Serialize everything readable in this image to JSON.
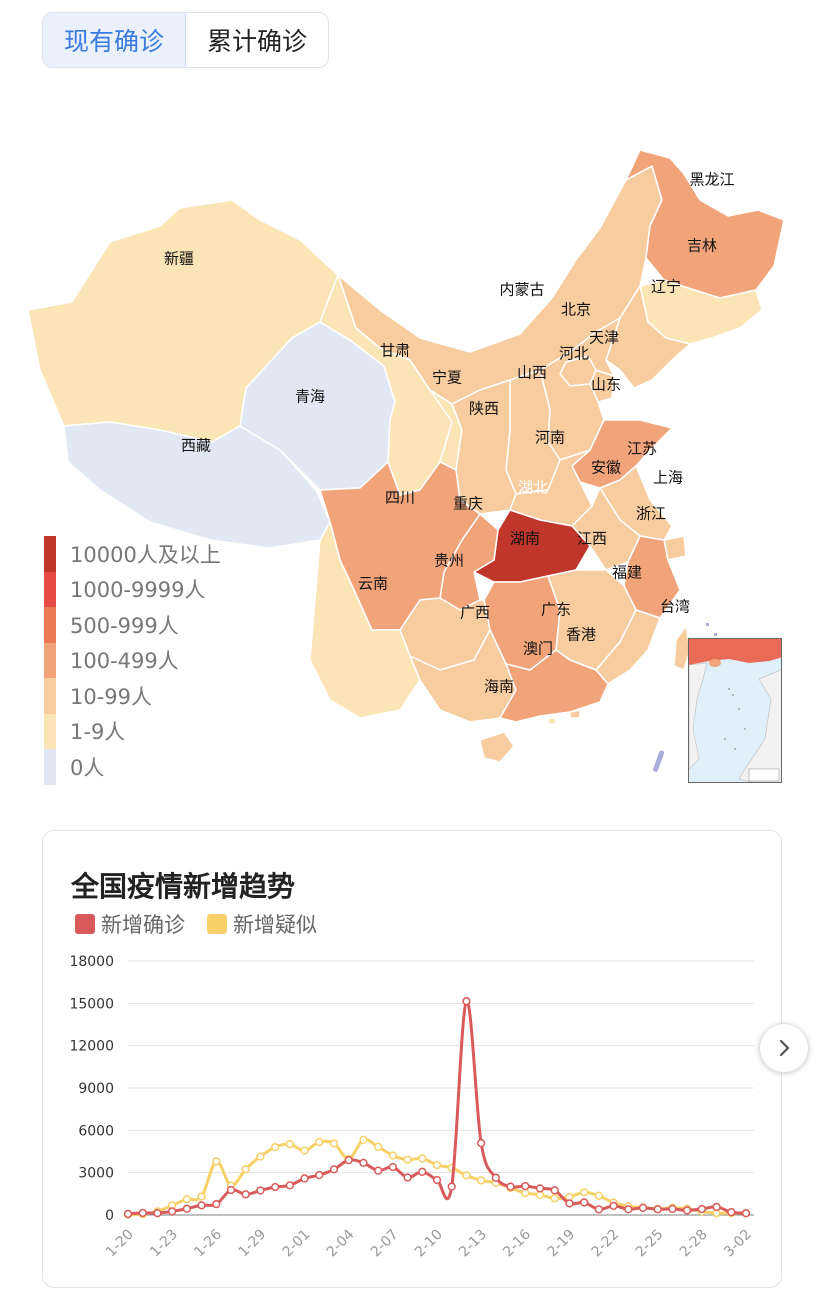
{
  "tabs": [
    {
      "label": "现有确诊",
      "active": true
    },
    {
      "label": "累计确诊",
      "active": false
    }
  ],
  "colors": {
    "c10000": "#c0362a",
    "c1000": "#e64a45",
    "c500": "#ec7a55",
    "c100": "#f1a37a",
    "c10": "#f7cc9e",
    "c1": "#fbe4b5",
    "c0": "#e2e8f3",
    "confirmed": "#d85a5a",
    "suspected": "#f7d068",
    "accent": "#3a7be0"
  },
  "map": {
    "provinces": [
      {
        "name": "黑龙江",
        "level": "c100"
      },
      {
        "name": "吉林",
        "level": "c1"
      },
      {
        "name": "辽宁",
        "level": "c10"
      },
      {
        "name": "内蒙古",
        "level": "c10"
      },
      {
        "name": "北京",
        "level": "c10"
      },
      {
        "name": "天津",
        "level": "c10"
      },
      {
        "name": "河北",
        "level": "c10"
      },
      {
        "name": "山西",
        "level": "c10"
      },
      {
        "name": "山东",
        "level": "c100"
      },
      {
        "name": "新疆",
        "level": "c1"
      },
      {
        "name": "甘肃",
        "level": "c1"
      },
      {
        "name": "宁夏",
        "level": "c1"
      },
      {
        "name": "陕西",
        "level": "c10"
      },
      {
        "name": "青海",
        "level": "c0"
      },
      {
        "name": "西藏",
        "level": "c0"
      },
      {
        "name": "河南",
        "level": "c10"
      },
      {
        "name": "江苏",
        "level": "c10"
      },
      {
        "name": "安徽",
        "level": "c10"
      },
      {
        "name": "上海",
        "level": "c10"
      },
      {
        "name": "湖北",
        "level": "c10000"
      },
      {
        "name": "四川",
        "level": "c100"
      },
      {
        "name": "重庆",
        "level": "c100"
      },
      {
        "name": "浙江",
        "level": "c100"
      },
      {
        "name": "湖南",
        "level": "c100"
      },
      {
        "name": "江西",
        "level": "c10"
      },
      {
        "name": "贵州",
        "level": "c10"
      },
      {
        "name": "云南",
        "level": "c1"
      },
      {
        "name": "福建",
        "level": "c10"
      },
      {
        "name": "广西",
        "level": "c10"
      },
      {
        "name": "广东",
        "level": "c100"
      },
      {
        "name": "台湾",
        "level": "c10"
      },
      {
        "name": "香港",
        "level": "c10"
      },
      {
        "name": "澳门",
        "level": "c1"
      },
      {
        "name": "海南",
        "level": "c10"
      }
    ]
  },
  "legend": [
    {
      "label": "10000人及以上",
      "color": "#c0362a"
    },
    {
      "label": "1000-9999人",
      "color": "#e64a45"
    },
    {
      "label": "500-999人",
      "color": "#ec7a55"
    },
    {
      "label": "100-499人",
      "color": "#f1a37a"
    },
    {
      "label": "10-99人",
      "color": "#f7cc9e"
    },
    {
      "label": "1-9人",
      "color": "#fbe4b5"
    },
    {
      "label": "0人",
      "color": "#e2e8f3"
    }
  ],
  "trend": {
    "title": "全国疫情新增趋势",
    "legend": [
      {
        "label": "新增确诊",
        "color": "#d85a5a"
      },
      {
        "label": "新增疑似",
        "color": "#f7d068"
      }
    ]
  },
  "chart_data": {
    "type": "line",
    "title": "全国疫情新增趋势",
    "ylim": [
      0,
      18000
    ],
    "yticks": [
      0,
      3000,
      6000,
      9000,
      12000,
      15000,
      18000
    ],
    "xtick_labels": [
      "1-20",
      "1-23",
      "1-26",
      "1-29",
      "2-01",
      "2-04",
      "2-07",
      "2-10",
      "2-13",
      "2-16",
      "2-19",
      "2-22",
      "2-25",
      "2-28",
      "3-02"
    ],
    "grid": true,
    "x": [
      "1-20",
      "1-21",
      "1-22",
      "1-23",
      "1-24",
      "1-25",
      "1-26",
      "1-27",
      "1-28",
      "1-29",
      "1-30",
      "1-31",
      "2-01",
      "2-02",
      "2-03",
      "2-04",
      "2-05",
      "2-06",
      "2-07",
      "2-08",
      "2-09",
      "2-10",
      "2-11",
      "2-12",
      "2-13",
      "2-14",
      "2-15",
      "2-16",
      "2-17",
      "2-18",
      "2-19",
      "2-20",
      "2-21",
      "2-22",
      "2-23",
      "2-24",
      "2-25",
      "2-26",
      "2-27",
      "2-28",
      "2-29",
      "3-01",
      "3-02"
    ],
    "series": [
      {
        "name": "新增确诊",
        "values": [
          77,
          149,
          131,
          259,
          444,
          688,
          769,
          1771,
          1459,
          1737,
          1982,
          2102,
          2590,
          2829,
          3235,
          3887,
          3694,
          3143,
          3399,
          2656,
          3062,
          2478,
          2015,
          15152,
          5090,
          2641,
          2009,
          2048,
          1886,
          1749,
          820,
          889,
          397,
          648,
          409,
          508,
          406,
          433,
          327,
          427,
          573,
          202,
          125
        ]
      },
      {
        "name": "新增疑似",
        "values": [
          27,
          60,
          257,
          680,
          1118,
          1309,
          3806,
          2077,
          3248,
          4148,
          4812,
          5019,
          4562,
          5173,
          5072,
          3971,
          5328,
          4833,
          4214,
          3916,
          4008,
          3536,
          3342,
          2807,
          2450,
          2277,
          1918,
          1563,
          1432,
          1185,
          1277,
          1614,
          1361,
          882,
          620,
          530,
          439,
          508,
          452,
          248,
          132,
          141,
          129
        ]
      }
    ]
  }
}
